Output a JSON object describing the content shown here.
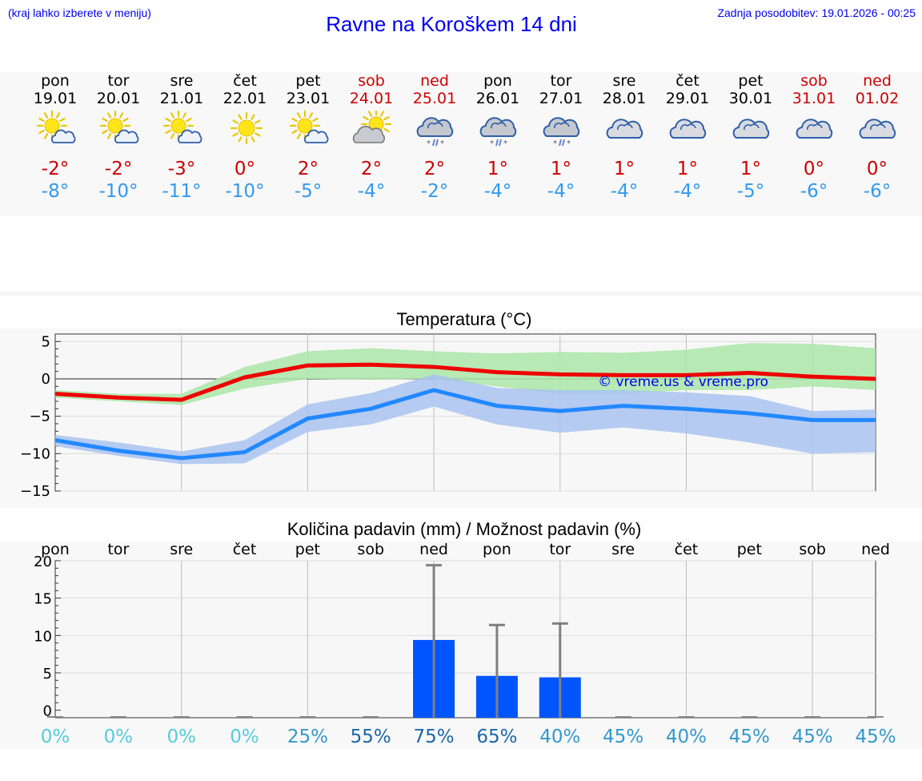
{
  "header": {
    "left_note": "(kraj lahko izberete v meniju)",
    "title": "Ravne na Koroškem 14 dni",
    "updated": "Zadnja posodobitev: 19.01.2026 - 00:25"
  },
  "days": [
    {
      "name": "pon",
      "date": "19.01",
      "weekend": false,
      "icon": "sun-partly-cloudy-icon",
      "max": "-2°",
      "min": "-8°"
    },
    {
      "name": "tor",
      "date": "20.01",
      "weekend": false,
      "icon": "sun-partly-cloudy-icon",
      "max": "-2°",
      "min": "-10°"
    },
    {
      "name": "sre",
      "date": "21.01",
      "weekend": false,
      "icon": "sun-partly-cloudy-icon",
      "max": "-3°",
      "min": "-11°"
    },
    {
      "name": "čet",
      "date": "22.01",
      "weekend": false,
      "icon": "sun-icon",
      "max": "0°",
      "min": "-10°"
    },
    {
      "name": "pet",
      "date": "23.01",
      "weekend": false,
      "icon": "sun-partly-cloudy-icon",
      "max": "2°",
      "min": "-5°"
    },
    {
      "name": "sob",
      "date": "24.01",
      "weekend": true,
      "icon": "cloud-sun-icon",
      "max": "2°",
      "min": "-4°"
    },
    {
      "name": "ned",
      "date": "25.01",
      "weekend": true,
      "icon": "cloud-sleet-icon",
      "max": "2°",
      "min": "-2°"
    },
    {
      "name": "pon",
      "date": "26.01",
      "weekend": false,
      "icon": "cloud-sleet-icon",
      "max": "1°",
      "min": "-4°"
    },
    {
      "name": "tor",
      "date": "27.01",
      "weekend": false,
      "icon": "cloud-sleet-icon",
      "max": "1°",
      "min": "-4°"
    },
    {
      "name": "sre",
      "date": "28.01",
      "weekend": false,
      "icon": "cloudy-icon",
      "max": "1°",
      "min": "-4°"
    },
    {
      "name": "čet",
      "date": "29.01",
      "weekend": false,
      "icon": "cloudy-icon",
      "max": "1°",
      "min": "-4°"
    },
    {
      "name": "pet",
      "date": "30.01",
      "weekend": false,
      "icon": "cloudy-icon",
      "max": "1°",
      "min": "-5°"
    },
    {
      "name": "sob",
      "date": "31.01",
      "weekend": true,
      "icon": "cloudy-icon",
      "max": "0°",
      "min": "-6°"
    },
    {
      "name": "ned",
      "date": "01.02",
      "weekend": true,
      "icon": "cloudy-icon",
      "max": "0°",
      "min": "-6°"
    }
  ],
  "chart_data": [
    {
      "type": "line",
      "title": "Temperatura (°C)",
      "watermark": "© vreme.us & vreme.pro",
      "ylim": [
        -15,
        6
      ],
      "yticks": [
        5,
        0,
        -5,
        -10,
        -15
      ],
      "ytick_labels": [
        "5",
        "0",
        "−5",
        "−10",
        "−15"
      ],
      "x": [
        0,
        1,
        2,
        3,
        4,
        5,
        6,
        7,
        8,
        9,
        10,
        11,
        12,
        13
      ],
      "series": [
        {
          "name": "max",
          "color": "#ee0000",
          "values": [
            -2.0,
            -2.5,
            -2.8,
            0.2,
            1.8,
            1.9,
            1.6,
            0.9,
            0.6,
            0.5,
            0.5,
            0.8,
            0.3,
            0.0
          ],
          "band_low": [
            -2.5,
            -3.0,
            -3.5,
            -1.3,
            0.0,
            -0.1,
            0.0,
            -1.0,
            -2.0,
            -2.0,
            -1.5,
            -1.5,
            -1.0,
            -1.5
          ],
          "band_high": [
            -1.5,
            -2.0,
            -2.0,
            1.6,
            3.7,
            4.1,
            3.7,
            3.4,
            3.6,
            3.5,
            3.9,
            4.8,
            4.7,
            4.1
          ],
          "band_color": "#aae6a8"
        },
        {
          "name": "min",
          "color": "#2288ff",
          "values": [
            -8.2,
            -9.6,
            -10.6,
            -9.8,
            -5.3,
            -4.0,
            -1.5,
            -3.6,
            -4.3,
            -3.6,
            -4.0,
            -4.6,
            -5.5,
            -5.5
          ],
          "band_low": [
            -9.0,
            -10.3,
            -11.4,
            -11.3,
            -7.1,
            -6.1,
            -3.7,
            -6.1,
            -7.2,
            -6.5,
            -7.3,
            -8.5,
            -10.0,
            -9.8
          ],
          "band_high": [
            -7.5,
            -8.5,
            -9.7,
            -8.2,
            -3.4,
            -1.9,
            0.6,
            -1.2,
            -1.5,
            -1.5,
            -1.8,
            -2.3,
            -4.3,
            -4.1
          ],
          "band_color": "#a9c3f0"
        }
      ]
    },
    {
      "type": "bar",
      "title": "Količina padavin (mm) / Možnost padavin (%)",
      "categories": [
        "pon",
        "tor",
        "sre",
        "čet",
        "pet",
        "sob",
        "ned",
        "pon",
        "tor",
        "sre",
        "čet",
        "pet",
        "sob",
        "ned"
      ],
      "ylim": [
        -1,
        20
      ],
      "yticks": [
        20,
        15,
        10,
        5,
        0
      ],
      "ytick_labels": [
        "20",
        "15",
        "10",
        "5",
        "0"
      ],
      "values": [
        0,
        0,
        0,
        0,
        0,
        0,
        9.4,
        4.6,
        4.4,
        0,
        0,
        0,
        0,
        0
      ],
      "error_high": [
        0,
        0,
        0,
        0,
        0,
        0,
        19.4,
        11.4,
        11.6,
        0,
        0,
        0,
        0,
        0
      ],
      "bar_color": "#0055ff",
      "chance_labels": [
        "0%",
        "0%",
        "0%",
        "0%",
        "25%",
        "55%",
        "75%",
        "65%",
        "40%",
        "45%",
        "40%",
        "45%",
        "45%",
        "45%"
      ],
      "chance_colors": [
        "#55ccdd",
        "#55ccdd",
        "#55ccdd",
        "#55ccdd",
        "#3399cc",
        "#1a66aa",
        "#1a66aa",
        "#1a66aa",
        "#3399cc",
        "#3399cc",
        "#3399cc",
        "#3399cc",
        "#3399cc",
        "#3399cc"
      ]
    }
  ]
}
